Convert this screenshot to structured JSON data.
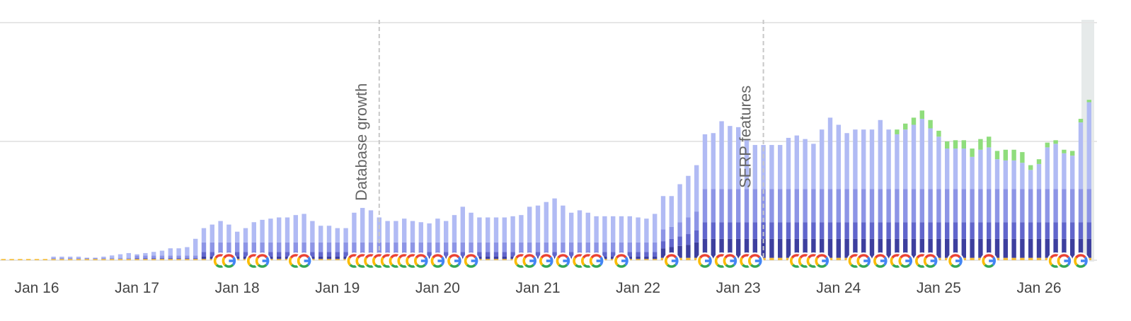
{
  "chart_data": {
    "type": "bar",
    "stacked": true,
    "categories": [
      null,
      null,
      null,
      null,
      "Jan 16",
      null,
      null,
      null,
      null,
      null,
      null,
      null,
      null,
      null,
      null,
      null,
      "Jan 17",
      null,
      null,
      null,
      null,
      null,
      null,
      null,
      null,
      null,
      null,
      null,
      "Jan 18",
      null,
      null,
      null,
      null,
      null,
      null,
      null,
      null,
      null,
      null,
      null,
      "Jan 19",
      null,
      null,
      null,
      null,
      null,
      null,
      null,
      null,
      null,
      null,
      null,
      "Jan 20",
      null,
      null,
      null,
      null,
      null,
      null,
      null,
      null,
      null,
      null,
      null,
      "Jan 21",
      null,
      null,
      null,
      null,
      null,
      null,
      null,
      null,
      null,
      null,
      null,
      "Jan 22",
      null,
      null,
      null,
      null,
      null,
      null,
      null,
      null,
      null,
      null,
      null,
      "Jan 23",
      null,
      null,
      null,
      null,
      null,
      null,
      null,
      null,
      null,
      null,
      null,
      "Jan 24",
      null,
      null,
      null,
      null,
      null,
      null,
      null,
      null,
      null,
      null,
      null,
      "Jan 25",
      null,
      null,
      null,
      null,
      null,
      null,
      null,
      null,
      null,
      null,
      null,
      "Jan 26",
      null,
      null,
      null,
      null,
      null,
      null
    ],
    "series": [
      {
        "color": "#f4be3e",
        "values": [
          1,
          1,
          1,
          1,
          1,
          1,
          1,
          1,
          1,
          1,
          1,
          1,
          1,
          1,
          1,
          1,
          1,
          1,
          1,
          1,
          1,
          1,
          1,
          1,
          1,
          1,
          1,
          1,
          1,
          1,
          1,
          1,
          1,
          1,
          1,
          1,
          1,
          1,
          1,
          1,
          1,
          1,
          1,
          1,
          1,
          1,
          1,
          1,
          1,
          1,
          1,
          1,
          1,
          1,
          1,
          1,
          1,
          1,
          1,
          1,
          1,
          1,
          1,
          1,
          1,
          1,
          1,
          1,
          1,
          1,
          1,
          1,
          1,
          1,
          1,
          1,
          1,
          1,
          1,
          2,
          2,
          2,
          2,
          2,
          2,
          2,
          2,
          2,
          2,
          2,
          2,
          2,
          2,
          2,
          2,
          2,
          2,
          2,
          2,
          2,
          2,
          2,
          2,
          2,
          2,
          2,
          2,
          2,
          2,
          2,
          2,
          2,
          2,
          2,
          2,
          2,
          2,
          2,
          2,
          2,
          2,
          2,
          2,
          2,
          2,
          2,
          2,
          2,
          2,
          2,
          2
        ]
      },
      {
        "color": "#3d3f9e",
        "values": [
          0,
          0,
          0,
          0,
          0,
          0,
          0,
          0,
          0,
          0,
          0,
          0,
          0,
          0,
          0,
          0,
          0,
          0,
          0,
          0,
          0,
          0,
          0,
          0,
          2,
          2,
          2,
          2,
          2,
          2,
          2,
          2,
          2,
          2,
          2,
          2,
          2,
          2,
          2,
          2,
          2,
          2,
          2,
          2,
          2,
          2,
          2,
          2,
          2,
          2,
          2,
          2,
          2,
          2,
          2,
          2,
          2,
          2,
          2,
          2,
          2,
          2,
          2,
          2,
          2,
          2,
          2,
          2,
          2,
          2,
          2,
          2,
          2,
          2,
          2,
          2,
          2,
          2,
          2,
          8,
          9,
          10,
          11,
          13,
          16,
          16,
          16,
          16,
          16,
          16,
          16,
          16,
          16,
          16,
          16,
          16,
          16,
          16,
          16,
          16,
          16,
          16,
          16,
          16,
          16,
          16,
          16,
          16,
          16,
          16,
          16,
          16,
          16,
          16,
          16,
          16,
          16,
          16,
          16,
          16,
          16,
          16,
          16,
          16,
          16,
          16,
          16,
          16,
          16,
          16,
          16
        ]
      },
      {
        "color": "#6166cc",
        "values": [
          0,
          0,
          0,
          0,
          0,
          0,
          0,
          0,
          0,
          0,
          0,
          0,
          0,
          0,
          0,
          0,
          1,
          1,
          1,
          1,
          1,
          1,
          1,
          1,
          4,
          4,
          4,
          4,
          4,
          4,
          4,
          4,
          4,
          4,
          4,
          4,
          4,
          4,
          4,
          4,
          4,
          4,
          4,
          4,
          4,
          4,
          4,
          4,
          4,
          4,
          4,
          4,
          4,
          4,
          4,
          4,
          4,
          4,
          4,
          4,
          4,
          4,
          4,
          4,
          4,
          4,
          4,
          4,
          4,
          4,
          4,
          4,
          4,
          4,
          4,
          4,
          4,
          4,
          4,
          6,
          7,
          8,
          9,
          10,
          14,
          14,
          14,
          14,
          14,
          14,
          14,
          14,
          14,
          14,
          14,
          14,
          14,
          14,
          14,
          14,
          14,
          14,
          14,
          14,
          14,
          14,
          14,
          14,
          14,
          14,
          14,
          14,
          14,
          14,
          14,
          14,
          14,
          14,
          14,
          14,
          14,
          14,
          14,
          14,
          14,
          14,
          14,
          14,
          14,
          14,
          14
        ]
      },
      {
        "color": "#8d95e6",
        "values": [
          0,
          0,
          0,
          0,
          0,
          0,
          1,
          1,
          1,
          1,
          1,
          1,
          1,
          1,
          1,
          1,
          2,
          2,
          2,
          2,
          2,
          2,
          2,
          2,
          8,
          8,
          8,
          8,
          8,
          8,
          8,
          8,
          8,
          8,
          8,
          8,
          8,
          8,
          8,
          8,
          8,
          8,
          8,
          8,
          8,
          8,
          8,
          8,
          8,
          8,
          8,
          8,
          8,
          8,
          8,
          8,
          8,
          8,
          8,
          8,
          8,
          8,
          8,
          8,
          8,
          8,
          8,
          8,
          8,
          8,
          8,
          8,
          8,
          8,
          8,
          8,
          8,
          8,
          8,
          10,
          10,
          12,
          14,
          16,
          28,
          28,
          28,
          28,
          28,
          28,
          28,
          28,
          28,
          28,
          28,
          28,
          28,
          28,
          28,
          28,
          28,
          28,
          28,
          28,
          28,
          28,
          28,
          28,
          28,
          28,
          28,
          28,
          28,
          28,
          28,
          28,
          28,
          28,
          28,
          28,
          28,
          28,
          28,
          28,
          28,
          28,
          28,
          28,
          28,
          28,
          28
        ]
      },
      {
        "color": "#b1bbf4",
        "values": [
          0,
          0,
          0,
          0,
          0,
          0,
          1,
          1,
          1,
          1,
          0,
          0,
          1,
          2,
          3,
          4,
          1,
          2,
          3,
          4,
          6,
          6,
          7,
          14,
          12,
          15,
          18,
          15,
          9,
          12,
          17,
          19,
          20,
          21,
          21,
          23,
          24,
          18,
          14,
          14,
          12,
          12,
          25,
          29,
          27,
          21,
          18,
          18,
          20,
          18,
          17,
          16,
          20,
          18,
          23,
          30,
          25,
          21,
          21,
          21,
          21,
          22,
          23,
          30,
          31,
          34,
          37,
          31,
          25,
          27,
          25,
          22,
          22,
          22,
          22,
          22,
          21,
          20,
          24,
          28,
          26,
          32,
          35,
          39,
          46,
          47,
          57,
          53,
          52,
          41,
          37,
          37,
          37,
          37,
          43,
          45,
          42,
          38,
          50,
          60,
          54,
          47,
          50,
          50,
          50,
          58,
          50,
          46,
          50,
          54,
          59,
          51,
          44,
          34,
          34,
          34,
          27,
          33,
          35,
          25,
          24,
          24,
          22,
          16,
          21,
          35,
          38,
          30,
          28,
          56,
          73
        ]
      },
      {
        "color": "#8fdd7c",
        "values": [
          0,
          0,
          0,
          0,
          0,
          0,
          0,
          0,
          0,
          0,
          0,
          0,
          0,
          0,
          0,
          0,
          0,
          0,
          0,
          0,
          0,
          0,
          0,
          0,
          0,
          0,
          0,
          0,
          0,
          0,
          0,
          0,
          0,
          0,
          0,
          0,
          0,
          0,
          0,
          0,
          0,
          0,
          0,
          0,
          0,
          0,
          0,
          0,
          0,
          0,
          0,
          0,
          0,
          0,
          0,
          0,
          0,
          0,
          0,
          0,
          0,
          0,
          0,
          0,
          0,
          0,
          0,
          0,
          0,
          0,
          0,
          0,
          0,
          0,
          0,
          0,
          0,
          0,
          0,
          0,
          0,
          0,
          0,
          0,
          0,
          0,
          0,
          0,
          0,
          0,
          0,
          0,
          0,
          0,
          0,
          0,
          0,
          0,
          0,
          0,
          0,
          0,
          0,
          0,
          0,
          0,
          0,
          4,
          5,
          6,
          7,
          7,
          5,
          6,
          7,
          7,
          7,
          9,
          9,
          7,
          9,
          9,
          9,
          4,
          4,
          4,
          3,
          3,
          4,
          3,
          2
        ]
      }
    ],
    "ylim": [
      0,
      200
    ],
    "yticks": [
      0,
      100,
      200
    ],
    "grid": true,
    "annotations": [
      {
        "text": "Database growth",
        "index": 45
      },
      {
        "text": "SERP features",
        "index": 91
      }
    ],
    "google_updates": [
      26,
      27,
      30,
      31,
      35,
      36,
      42,
      43,
      44,
      45,
      46,
      47,
      48,
      49,
      50,
      52,
      54,
      56,
      62,
      63,
      65,
      67,
      69,
      70,
      71,
      74,
      80,
      84,
      86,
      87,
      89,
      90,
      95,
      96,
      97,
      98,
      102,
      103,
      105,
      107,
      108,
      110,
      111,
      114,
      118,
      126,
      127,
      129
    ]
  }
}
